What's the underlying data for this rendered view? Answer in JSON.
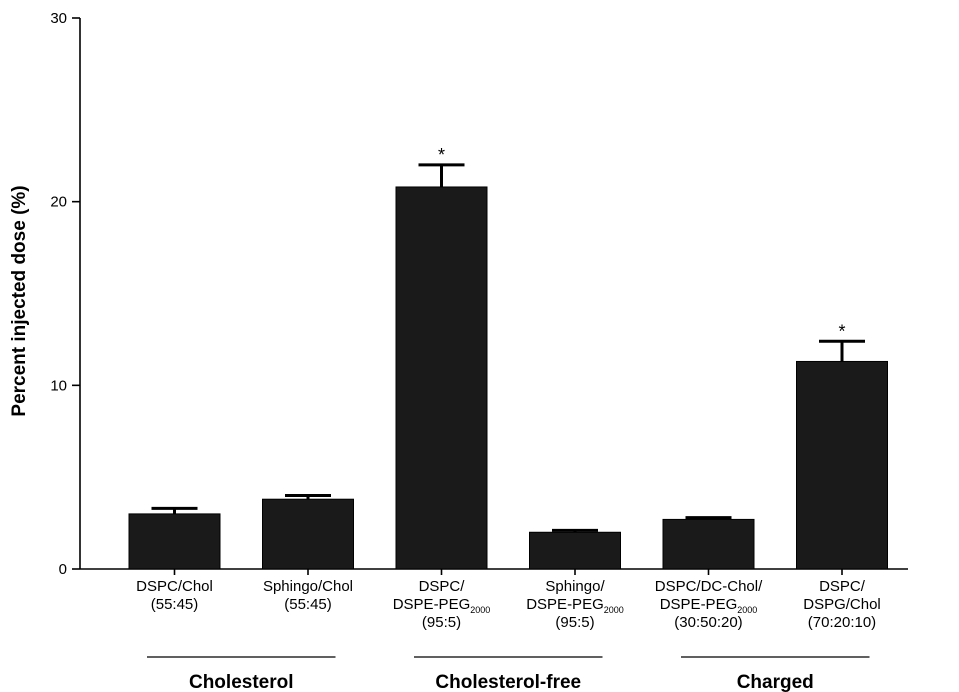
{
  "chart_data": {
    "type": "bar",
    "ylabel": "Percent injected dose (%)",
    "ylim": [
      0,
      30
    ],
    "yticks": [
      0,
      10,
      20,
      30
    ],
    "grid": false,
    "bar_color": "#1a1a1a",
    "categories": [
      {
        "lines": [
          [
            {
              "t": "DSPC/Chol"
            }
          ],
          [
            {
              "t": "(55:45)"
            }
          ]
        ]
      },
      {
        "lines": [
          [
            {
              "t": "Sphingo/Chol"
            }
          ],
          [
            {
              "t": "(55:45)"
            }
          ]
        ]
      },
      {
        "lines": [
          [
            {
              "t": "DSPC/"
            }
          ],
          [
            {
              "t": "DSPE-PEG"
            },
            {
              "t": "2000",
              "sub": true
            }
          ],
          [
            {
              "t": "(95:5)"
            }
          ]
        ]
      },
      {
        "lines": [
          [
            {
              "t": "Sphingo/"
            }
          ],
          [
            {
              "t": "DSPE-PEG"
            },
            {
              "t": "2000",
              "sub": true
            }
          ],
          [
            {
              "t": "(95:5)"
            }
          ]
        ]
      },
      {
        "lines": [
          [
            {
              "t": "DSPC/DC-Chol/"
            }
          ],
          [
            {
              "t": "DSPE-PEG"
            },
            {
              "t": "2000",
              "sub": true
            }
          ],
          [
            {
              "t": "(30:50:20)"
            }
          ]
        ]
      },
      {
        "lines": [
          [
            {
              "t": "DSPC/"
            }
          ],
          [
            {
              "t": "DSPG/Chol"
            }
          ],
          [
            {
              "t": "(70:20:10)"
            }
          ]
        ]
      }
    ],
    "values": [
      3.0,
      3.8,
      20.8,
      2.0,
      2.7,
      11.3
    ],
    "errors": [
      0.3,
      0.2,
      1.2,
      0.1,
      0.1,
      1.1
    ],
    "annotations": [
      "",
      "",
      "*",
      "",
      "",
      "*"
    ],
    "groups": [
      {
        "label": "Cholesterol",
        "categories": [
          0,
          1
        ]
      },
      {
        "label": "Cholesterol-free",
        "categories": [
          2,
          3
        ]
      },
      {
        "label": "Charged",
        "categories": [
          4,
          5
        ]
      }
    ]
  }
}
